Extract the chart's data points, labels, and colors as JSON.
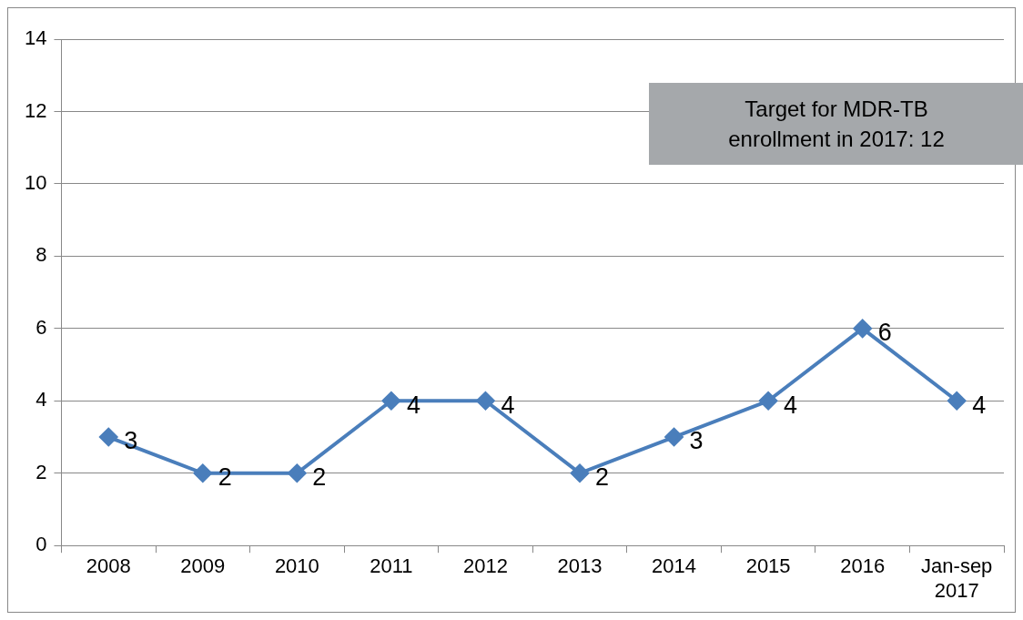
{
  "chart_data": {
    "type": "line",
    "categories": [
      "2008",
      "2009",
      "2010",
      "2011",
      "2012",
      "2013",
      "2014",
      "2015",
      "2016",
      "Jan-sep 2017"
    ],
    "values": [
      3,
      2,
      2,
      4,
      4,
      2,
      3,
      4,
      6,
      4
    ],
    "color": "#4a7ebb",
    "ylim": [
      0,
      14
    ],
    "yticks": [
      0,
      2,
      4,
      6,
      8,
      10,
      12,
      14
    ],
    "grid": "y",
    "marker": "diamond",
    "data_labels": true,
    "legend": false,
    "annotations": [
      "Target for MDR-TB enrollment in 2017: 12"
    ]
  }
}
